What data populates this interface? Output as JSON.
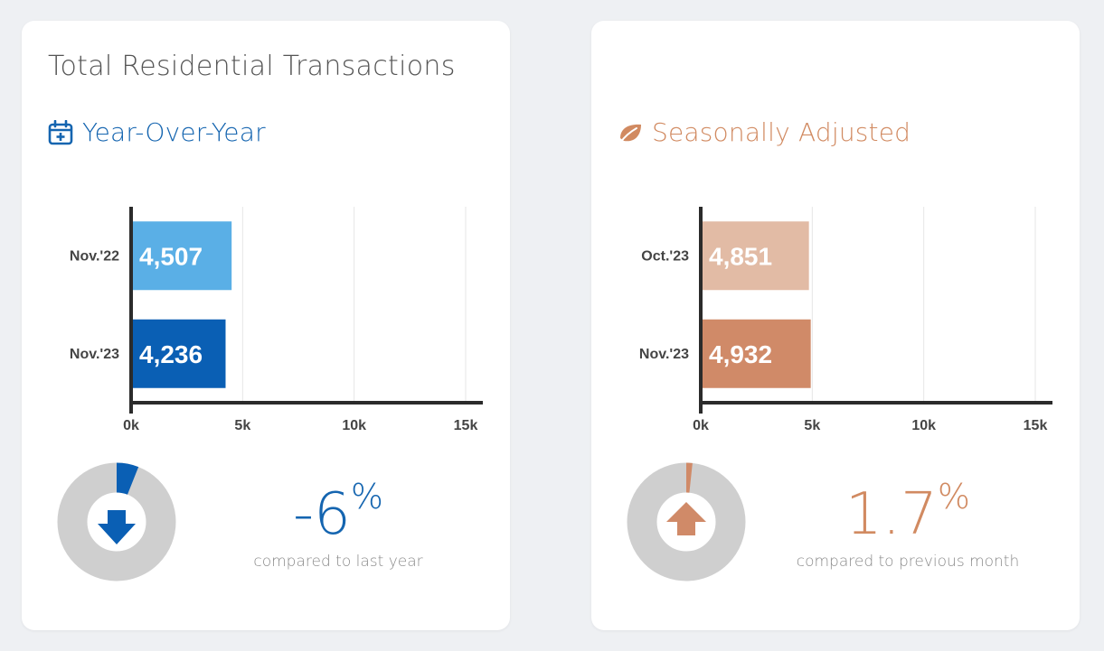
{
  "title": "Total Residential Transactions",
  "colors": {
    "blue_dark": "#0a5fb4",
    "blue_light": "#5aafe6",
    "blue_text": "#1565b0",
    "brown_dark": "#d08a68",
    "brown_light": "#e2bba5",
    "brown_text": "#d18a61",
    "donut_track": "#cfcfcf"
  },
  "left": {
    "subtitle": "Year-Over-Year",
    "icon": "calendar-plus-icon",
    "change": {
      "value": "-6",
      "sign": "%",
      "caption": "compared to last year",
      "direction": "down"
    },
    "donut_fill_fraction": 0.06
  },
  "right": {
    "subtitle": "Seasonally Adjusted",
    "icon": "leaf-icon",
    "change": {
      "value": "1.7",
      "sign": "%",
      "caption": "compared to previous month",
      "direction": "up"
    },
    "donut_fill_fraction": 0.017
  },
  "chart_data": [
    {
      "type": "bar",
      "orientation": "horizontal",
      "categories": [
        "Nov.'22",
        "Nov.'23"
      ],
      "values": [
        4507,
        4236
      ],
      "value_labels": [
        "4,507",
        "4,236"
      ],
      "bar_colors": [
        "#5aafe6",
        "#0a5fb4"
      ],
      "xlim": [
        0,
        15000
      ],
      "x_ticks": [
        0,
        5000,
        10000,
        15000
      ],
      "x_tick_labels": [
        "0k",
        "5k",
        "10k",
        "15k"
      ],
      "grid": true
    },
    {
      "type": "bar",
      "orientation": "horizontal",
      "categories": [
        "Oct.'23",
        "Nov.'23"
      ],
      "values": [
        4851,
        4932
      ],
      "value_labels": [
        "4,851",
        "4,932"
      ],
      "bar_colors": [
        "#e2bba5",
        "#d08a68"
      ],
      "xlim": [
        0,
        15000
      ],
      "x_ticks": [
        0,
        5000,
        10000,
        15000
      ],
      "x_tick_labels": [
        "0k",
        "5k",
        "10k",
        "15k"
      ],
      "grid": true
    }
  ]
}
